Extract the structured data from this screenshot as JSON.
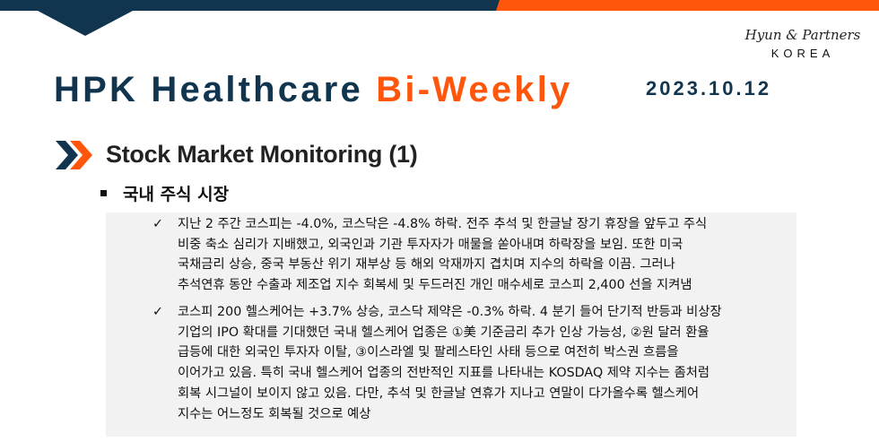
{
  "brand": {
    "logo_script": "Hyun & Partners",
    "logo_sub": "KOREA",
    "colors": {
      "navy": "#12354f",
      "orange": "#ff560c"
    }
  },
  "header": {
    "title_part1": "HPK Healthcare",
    "title_part2": "Bi-Weekly",
    "date": "2023.10.12"
  },
  "section": {
    "icon": "double-chevron-right-icon",
    "title": "Stock Market Monitoring (1)",
    "subheading": "국내 주식 시장"
  },
  "bullets": [
    {
      "icon": "check-icon",
      "lines": [
        "지난 2 주간 코스피는 -4.0%, 코스닥은 -4.8% 하락. 전주 추석 및 한글날 장기 휴장을 앞두고 주식",
        "비중 축소 심리가 지배했고, 외국인과 기관 투자자가 매물을 쏟아내며 하락장을 보임. 또한 미국",
        "국채금리 상승, 중국 부동산 위기 재부상 등 해외 악재까지 겹치며 지수의 하락을 이끔. 그러나",
        "추석연휴 동안 수출과 제조업 지수 회복세 및 두드러진 개인 매수세로 코스피 2,400 선을 지켜냄"
      ]
    },
    {
      "icon": "check-icon",
      "lines": [
        "코스피 200 헬스케어는 +3.7% 상승, 코스닥 제약은 -0.3% 하락. 4 분기 들어 단기적 반등과 비상장",
        "기업의 IPO 확대를 기대했던 국내 헬스케어 업종은 ①美 기준금리 추가 인상 가능성, ②원 달러 환율",
        "급등에 대한 외국인 투자자 이탈, ③이스라엘 및 팔레스타인 사태 등으로 여전히 박스권 흐름을",
        "이어가고 있음. 특히 국내 헬스케어 업종의 전반적인 지표를 나타내는 KOSDAQ 제약 지수는 좀처럼",
        "회복 시그널이 보이지 않고 있음. 다만, 추석 및 한글날 연휴가 지나고 연말이 다가올수록 헬스케어",
        "지수는 어느정도 회복될 것으로 예상"
      ]
    }
  ]
}
